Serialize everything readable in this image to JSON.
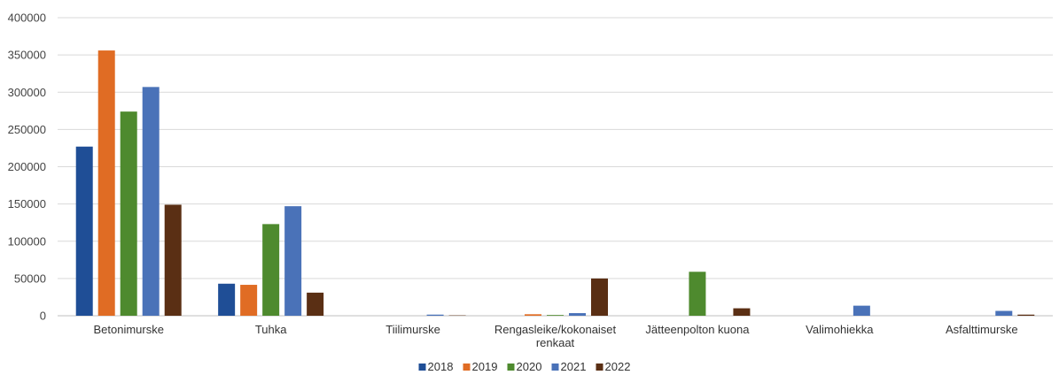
{
  "chart_data": {
    "type": "bar",
    "categories": [
      "Betonimurske",
      "Tuhka",
      "Tiilimurske",
      "Rengasleike/kokonaiset renkaat",
      "Jätteenpolton kuona",
      "Valimohiekka",
      "Asfalttimurske"
    ],
    "series": [
      {
        "name": "2018",
        "color": "#1f4e96",
        "values": [
          227000,
          43000,
          0,
          0,
          0,
          0,
          0
        ]
      },
      {
        "name": "2019",
        "color": "#e06c24",
        "values": [
          356000,
          41500,
          0,
          2000,
          0,
          0,
          0
        ]
      },
      {
        "name": "2020",
        "color": "#4e8a2e",
        "values": [
          274000,
          123000,
          0,
          1000,
          59000,
          0,
          0
        ]
      },
      {
        "name": "2021",
        "color": "#4a72b8",
        "values": [
          307000,
          147000,
          1500,
          3500,
          0,
          13500,
          6500
        ]
      },
      {
        "name": "2022",
        "color": "#5a2f14",
        "values": [
          149000,
          31000,
          500,
          50000,
          10000,
          0,
          1500
        ]
      }
    ],
    "yticks": [
      "0",
      "50000",
      "100000",
      "150000",
      "200000",
      "250000",
      "300000",
      "350000",
      "400000"
    ],
    "ylim": [
      0,
      400000
    ],
    "title": "",
    "xlabel": "",
    "ylabel": "",
    "grid": true,
    "legend_position": "bottom"
  }
}
